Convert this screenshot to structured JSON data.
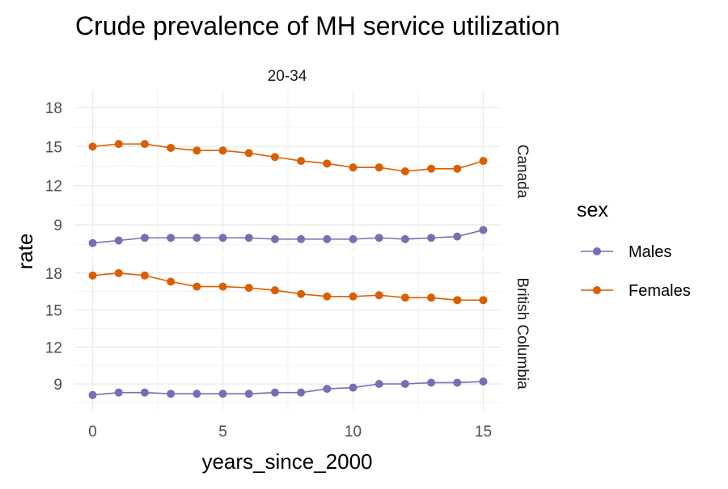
{
  "chart_data": {
    "type": "line",
    "title": "Crude prevalence of MH service utilization",
    "facet_column_label": "20-34",
    "xlabel": "years_since_2000",
    "ylabel": "rate",
    "x": [
      0,
      1,
      2,
      3,
      4,
      5,
      6,
      7,
      8,
      9,
      10,
      11,
      12,
      13,
      14,
      15
    ],
    "x_ticks": [
      0,
      5,
      10,
      15
    ],
    "xlim": [
      -0.7,
      15.7
    ],
    "legend": {
      "title": "sex",
      "position": "right",
      "entries": [
        "Males",
        "Females"
      ]
    },
    "grid": true,
    "panels": [
      {
        "name": "Canada",
        "ylim": [
          6.9,
          19.3
        ],
        "y_ticks": [
          9,
          12,
          15,
          18
        ],
        "series": [
          {
            "name": "Males",
            "color": "#7570b3",
            "values": [
              7.6,
              7.8,
              8.0,
              8.0,
              8.0,
              8.0,
              8.0,
              7.9,
              7.9,
              7.9,
              7.9,
              8.0,
              7.9,
              8.0,
              8.1,
              8.6
            ]
          },
          {
            "name": "Females",
            "color": "#d95f02",
            "values": [
              15.0,
              15.2,
              15.2,
              14.9,
              14.7,
              14.7,
              14.5,
              14.2,
              13.9,
              13.7,
              13.4,
              13.4,
              13.1,
              13.3,
              13.3,
              13.9
            ]
          }
        ]
      },
      {
        "name": "British Columbia",
        "ylim": [
          6.9,
          19.3
        ],
        "y_ticks": [
          9,
          12,
          15,
          18
        ],
        "series": [
          {
            "name": "Males",
            "color": "#7570b3",
            "values": [
              8.1,
              8.3,
              8.3,
              8.2,
              8.2,
              8.2,
              8.2,
              8.3,
              8.3,
              8.6,
              8.7,
              9.0,
              9.0,
              9.1,
              9.1,
              9.2
            ]
          },
          {
            "name": "Females",
            "color": "#d95f02",
            "values": [
              17.8,
              18.0,
              17.8,
              17.3,
              16.9,
              16.9,
              16.8,
              16.6,
              16.3,
              16.1,
              16.1,
              16.2,
              16.0,
              16.0,
              15.8,
              15.8
            ]
          }
        ]
      }
    ]
  }
}
